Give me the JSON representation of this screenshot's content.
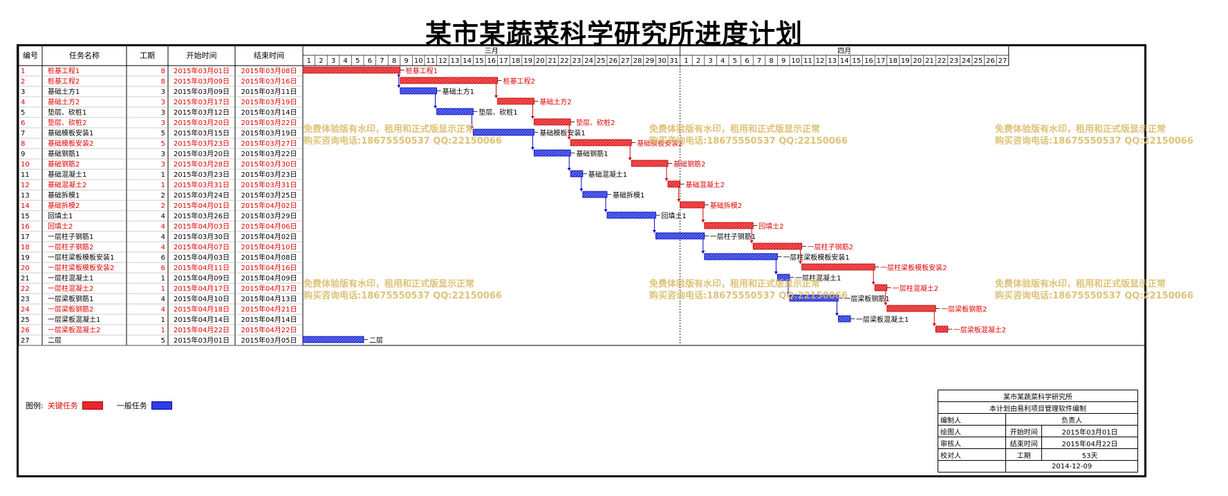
{
  "title": "某市某蔬菜科学研究所进度计划",
  "columns": [
    "编号",
    "任务名称",
    "工期",
    "开始时间",
    "结束时间"
  ],
  "months": [
    {
      "label": "三月",
      "days": 31
    },
    {
      "label": "四月",
      "days": 27
    }
  ],
  "colors": {
    "critical": "#e8282c",
    "normal": "#2f3ee0",
    "red_text": "#e00000"
  },
  "tasks": [
    {
      "id": "1",
      "name": "桩基工程1",
      "dur": "8",
      "start": "2015年03月01日",
      "end": "2015年03月08日",
      "critical": true,
      "s": 1,
      "e": 8
    },
    {
      "id": "2",
      "name": "桩基工程2",
      "dur": "8",
      "start": "2015年03月09日",
      "end": "2015年03月16日",
      "critical": true,
      "s": 9,
      "e": 16
    },
    {
      "id": "3",
      "name": "基础土方1",
      "dur": "3",
      "start": "2015年03月09日",
      "end": "2015年03月11日",
      "critical": false,
      "s": 9,
      "e": 11
    },
    {
      "id": "4",
      "name": "基础土方2",
      "dur": "3",
      "start": "2015年03月17日",
      "end": "2015年03月19日",
      "critical": true,
      "s": 17,
      "e": 19
    },
    {
      "id": "5",
      "name": "垫层、砍桩1",
      "dur": "3",
      "start": "2015年03月12日",
      "end": "2015年03月14日",
      "critical": false,
      "s": 12,
      "e": 14
    },
    {
      "id": "6",
      "name": "垫层、砍桩2",
      "dur": "3",
      "start": "2015年03月20日",
      "end": "2015年03月22日",
      "critical": true,
      "s": 20,
      "e": 22
    },
    {
      "id": "7",
      "name": "基础模板安装1",
      "dur": "5",
      "start": "2015年03月15日",
      "end": "2015年03月19日",
      "critical": false,
      "s": 15,
      "e": 19
    },
    {
      "id": "8",
      "name": "基础模板安装2",
      "dur": "5",
      "start": "2015年03月23日",
      "end": "2015年03月27日",
      "critical": true,
      "s": 23,
      "e": 27
    },
    {
      "id": "9",
      "name": "基础钢筋1",
      "dur": "3",
      "start": "2015年03月20日",
      "end": "2015年03月22日",
      "critical": false,
      "s": 20,
      "e": 22
    },
    {
      "id": "10",
      "name": "基础钢筋2",
      "dur": "3",
      "start": "2015年03月28日",
      "end": "2015年03月30日",
      "critical": true,
      "s": 28,
      "e": 30
    },
    {
      "id": "11",
      "name": "基础混凝土1",
      "dur": "1",
      "start": "2015年03月23日",
      "end": "2015年03月23日",
      "critical": false,
      "s": 23,
      "e": 23
    },
    {
      "id": "12",
      "name": "基础混凝土2",
      "dur": "1",
      "start": "2015年03月31日",
      "end": "2015年03月31日",
      "critical": true,
      "s": 31,
      "e": 31
    },
    {
      "id": "13",
      "name": "基础拆模1",
      "dur": "2",
      "start": "2015年03月24日",
      "end": "2015年03月25日",
      "critical": false,
      "s": 24,
      "e": 25
    },
    {
      "id": "14",
      "name": "基础拆模2",
      "dur": "2",
      "start": "2015年04月01日",
      "end": "2015年04月02日",
      "critical": true,
      "s": 32,
      "e": 33
    },
    {
      "id": "15",
      "name": "回填土1",
      "dur": "4",
      "start": "2015年03月26日",
      "end": "2015年03月29日",
      "critical": false,
      "s": 26,
      "e": 29
    },
    {
      "id": "16",
      "name": "回填土2",
      "dur": "4",
      "start": "2015年04月03日",
      "end": "2015年04月06日",
      "critical": true,
      "s": 34,
      "e": 37
    },
    {
      "id": "17",
      "name": "一层柱子钢筋1",
      "dur": "4",
      "start": "2015年03月30日",
      "end": "2015年04月02日",
      "critical": false,
      "s": 30,
      "e": 33
    },
    {
      "id": "18",
      "name": "一层柱子钢筋2",
      "dur": "4",
      "start": "2015年04月07日",
      "end": "2015年04月10日",
      "critical": true,
      "s": 38,
      "e": 41
    },
    {
      "id": "19",
      "name": "一层柱梁板模板安装1",
      "dur": "6",
      "start": "2015年04月03日",
      "end": "2015年04月08日",
      "critical": false,
      "s": 34,
      "e": 39
    },
    {
      "id": "20",
      "name": "一层柱梁板模板安装2",
      "dur": "6",
      "start": "2015年04月11日",
      "end": "2015年04月16日",
      "critical": true,
      "s": 42,
      "e": 47
    },
    {
      "id": "21",
      "name": "一层柱混凝土1",
      "dur": "1",
      "start": "2015年04月09日",
      "end": "2015年04月09日",
      "critical": false,
      "s": 40,
      "e": 40
    },
    {
      "id": "22",
      "name": "一层柱混凝土2",
      "dur": "1",
      "start": "2015年04月17日",
      "end": "2015年04月17日",
      "critical": true,
      "s": 48,
      "e": 48
    },
    {
      "id": "23",
      "name": "一层梁板钢筋1",
      "dur": "4",
      "start": "2015年04月10日",
      "end": "2015年04月13日",
      "critical": false,
      "s": 41,
      "e": 44
    },
    {
      "id": "24",
      "name": "一层梁板钢筋2",
      "dur": "4",
      "start": "2015年04月18日",
      "end": "2015年04月21日",
      "critical": true,
      "s": 49,
      "e": 52
    },
    {
      "id": "25",
      "name": "一层梁板混凝土1",
      "dur": "1",
      "start": "2015年04月14日",
      "end": "2015年04月14日",
      "critical": false,
      "s": 45,
      "e": 45
    },
    {
      "id": "26",
      "name": "一层梁板混凝土2",
      "dur": "1",
      "start": "2015年04月22日",
      "end": "2015年04月22日",
      "critical": true,
      "s": 53,
      "e": 53
    },
    {
      "id": "27",
      "name": "二层",
      "dur": "5",
      "start": "2015年03月01日",
      "end": "2015年03月05日",
      "critical": false,
      "s": 1,
      "e": 5
    }
  ],
  "watermark": {
    "line1": "免费体验版有水印，租用和正式版显示正常",
    "line2": "购买咨询电话:18675550537 QQ:22150066"
  },
  "legend": {
    "label": "图例:",
    "critical": "关键任务",
    "normal": "一般任务"
  },
  "titleblock": {
    "org": "某市某蔬菜科学研究所",
    "note": "本计划由易利项目管理软件编制",
    "compiler": "编制人",
    "owner": "负责人",
    "drawer": "绘图人",
    "start_label": "开始时间",
    "start_value": "2015年03月01日",
    "reviewer": "审核人",
    "end_label": "结束时间",
    "end_value": "2015年04月22日",
    "checker": "校对人",
    "dur_label": "工期",
    "dur_value": "53天",
    "date": "2014-12-09"
  }
}
